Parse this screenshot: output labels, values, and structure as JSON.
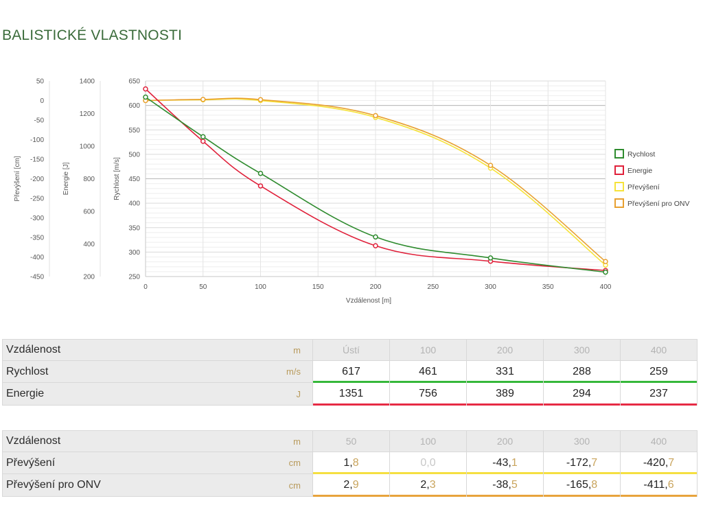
{
  "page": {
    "title": "BALISTICKÉ VLASTNOSTI"
  },
  "colors": {
    "rychlost": "#2e8b2e",
    "energie": "#e0203a",
    "prevyseni": "#f6e33a",
    "prevyseni_onv": "#e8a030",
    "bar_rychlost": "#35b83a",
    "bar_energie": "#e62a44",
    "bar_prevyseni": "#f5df40",
    "bar_onv": "#e8a33c"
  },
  "chart_data": {
    "type": "line",
    "xlabel": "Vzdálenost [m]",
    "xlim": [
      0,
      400
    ],
    "x_ticks": [
      "0",
      "50",
      "100",
      "150",
      "200",
      "250",
      "300",
      "350",
      "400"
    ],
    "axes": [
      {
        "label": "Rychlost [m/s]",
        "range": [
          250,
          650
        ],
        "ticks": [
          "250",
          "300",
          "350",
          "400",
          "450",
          "500",
          "550",
          "600",
          "650"
        ]
      },
      {
        "label": "Energie [J]",
        "range": [
          200,
          1400
        ],
        "ticks": [
          "200",
          "400",
          "600",
          "800",
          "1000",
          "1200",
          "1400"
        ]
      },
      {
        "label": "Převýšení [cm]",
        "range": [
          -450,
          50
        ],
        "ticks": [
          "-450",
          "-400",
          "-350",
          "-300",
          "-250",
          "-200",
          "-150",
          "-100",
          "-50",
          "0",
          "50"
        ]
      }
    ],
    "series": [
      {
        "name": "Rychlost",
        "axis": 0,
        "color": "#2e8b2e",
        "points": [
          [
            0,
            617
          ],
          [
            50,
            536
          ],
          [
            100,
            461
          ],
          [
            200,
            331
          ],
          [
            300,
            288
          ],
          [
            400,
            259
          ]
        ]
      },
      {
        "name": "Energie",
        "axis": 1,
        "color": "#e0203a",
        "points": [
          [
            0,
            1351
          ],
          [
            50,
            1030
          ],
          [
            100,
            756
          ],
          [
            200,
            389
          ],
          [
            300,
            294
          ],
          [
            400,
            237
          ]
        ]
      },
      {
        "name": "Převýšení",
        "axis": 2,
        "color": "#f6e33a",
        "points": [
          [
            0,
            0
          ],
          [
            50,
            1.8
          ],
          [
            100,
            0
          ],
          [
            200,
            -43.1
          ],
          [
            300,
            -172.7
          ],
          [
            400,
            -420.7
          ]
        ]
      },
      {
        "name": "Převýšení pro ONV",
        "axis": 2,
        "color": "#e8a030",
        "points": [
          [
            0,
            0
          ],
          [
            50,
            2.9
          ],
          [
            100,
            2.3
          ],
          [
            200,
            -38.5
          ],
          [
            300,
            -165.8
          ],
          [
            400,
            -411.6
          ]
        ]
      }
    ],
    "grid": true,
    "legend": "right"
  },
  "table1": {
    "rows": [
      {
        "label": "Vzdálenost",
        "unit": "m",
        "header": true,
        "cells": [
          {
            "int": "Ústí",
            "dec": ""
          },
          {
            "int": "100",
            "dec": ""
          },
          {
            "int": "200",
            "dec": ""
          },
          {
            "int": "300",
            "dec": ""
          },
          {
            "int": "400",
            "dec": ""
          }
        ]
      },
      {
        "label": "Rychlost",
        "unit": "m/s",
        "cells": [
          {
            "int": "617",
            "dec": ""
          },
          {
            "int": "461",
            "dec": ""
          },
          {
            "int": "331",
            "dec": ""
          },
          {
            "int": "288",
            "dec": ""
          },
          {
            "int": "259",
            "dec": ""
          }
        ]
      },
      {
        "label": "Energie",
        "unit": "J",
        "cells": [
          {
            "int": "1351",
            "dec": ""
          },
          {
            "int": "756",
            "dec": ""
          },
          {
            "int": "389",
            "dec": ""
          },
          {
            "int": "294",
            "dec": ""
          },
          {
            "int": "237",
            "dec": ""
          }
        ]
      }
    ]
  },
  "table2": {
    "rows": [
      {
        "label": "Vzdálenost",
        "unit": "m",
        "header": true,
        "cells": [
          {
            "int": "50",
            "dec": ""
          },
          {
            "int": "100",
            "dec": ""
          },
          {
            "int": "200",
            "dec": ""
          },
          {
            "int": "300",
            "dec": ""
          },
          {
            "int": "400",
            "dec": ""
          }
        ]
      },
      {
        "label": "Převýšení",
        "unit": "cm",
        "cells": [
          {
            "int": "1,",
            "dec": "8"
          },
          {
            "int": "0,0",
            "dec": "",
            "muted": true
          },
          {
            "int": "-43,",
            "dec": "1"
          },
          {
            "int": "-172,",
            "dec": "7"
          },
          {
            "int": "-420,",
            "dec": "7"
          }
        ]
      },
      {
        "label": "Převýšení pro ONV",
        "unit": "cm",
        "cells": [
          {
            "int": "2,",
            "dec": "9"
          },
          {
            "int": "2,",
            "dec": "3"
          },
          {
            "int": "-38,",
            "dec": "5"
          },
          {
            "int": "-165,",
            "dec": "8"
          },
          {
            "int": "-411,",
            "dec": "6"
          }
        ]
      }
    ]
  }
}
